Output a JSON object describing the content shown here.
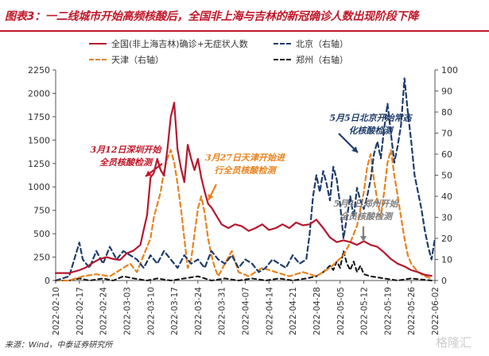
{
  "header": {
    "title": "图表3：一二线城市开始高频核酸后，全国非上海与吉林的新冠确诊人数出现阶段下降"
  },
  "footer": {
    "source": "来源：Wind，中泰证券研究所",
    "watermark": "格隆汇"
  },
  "colors": {
    "accent": "#c0182a",
    "national": "#b5182e",
    "tianjin": "#e8821e",
    "beijing": "#1f3d6b",
    "zhengzhou": "#111111",
    "guide": "#3a6ea5"
  },
  "chart_data": {
    "type": "line",
    "xlabel": "",
    "ylabel_left": "",
    "ylabel_right": "",
    "y_left_lim": [
      0,
      2250
    ],
    "y_left_ticks": [
      "0",
      "250",
      "500",
      "750",
      "1000",
      "1250",
      "1500",
      "1750",
      "2000",
      "2250"
    ],
    "y_right_lim": [
      0,
      100
    ],
    "y_right_ticks": [
      "0",
      "10",
      "20",
      "30",
      "40",
      "50",
      "60",
      "70",
      "80",
      "90",
      "100"
    ],
    "x_ticks": [
      "2022-02-10",
      "2022-02-17",
      "2022-02-24",
      "2022-03-03",
      "2022-03-10",
      "2022-03-17",
      "2022-03-24",
      "2022-03-31",
      "2022-04-07",
      "2022-04-14",
      "2022-04-21",
      "2022-04-28",
      "2022-05-05",
      "2022-05-12",
      "2022-05-19",
      "2022-05-26",
      "2022-06-02"
    ],
    "x_range": [
      "2022-02-10",
      "2022-06-02"
    ],
    "grid": false,
    "legend_position": "top",
    "series": [
      {
        "name": "全国(非上海吉林)确诊+无症状人数",
        "axis": "left",
        "style": "solid",
        "x": [
          "2022-02-10",
          "2022-02-14",
          "2022-02-17",
          "2022-02-19",
          "2022-02-21",
          "2022-02-23",
          "2022-02-25",
          "2022-02-27",
          "2022-03-01",
          "2022-03-03",
          "2022-03-05",
          "2022-03-07",
          "2022-03-08",
          "2022-03-09",
          "2022-03-10",
          "2022-03-11",
          "2022-03-12",
          "2022-03-13",
          "2022-03-14",
          "2022-03-15",
          "2022-03-16",
          "2022-03-17",
          "2022-03-18",
          "2022-03-19",
          "2022-03-20",
          "2022-03-21",
          "2022-03-22",
          "2022-03-23",
          "2022-03-24",
          "2022-03-25",
          "2022-03-26",
          "2022-03-27",
          "2022-03-28",
          "2022-03-29",
          "2022-03-31",
          "2022-04-02",
          "2022-04-04",
          "2022-04-06",
          "2022-04-08",
          "2022-04-10",
          "2022-04-12",
          "2022-04-14",
          "2022-04-16",
          "2022-04-18",
          "2022-04-20",
          "2022-04-22",
          "2022-04-24",
          "2022-04-26",
          "2022-04-28",
          "2022-04-30",
          "2022-05-02",
          "2022-05-04",
          "2022-05-06",
          "2022-05-08",
          "2022-05-10",
          "2022-05-12",
          "2022-05-14",
          "2022-05-16",
          "2022-05-18",
          "2022-05-20",
          "2022-05-22",
          "2022-05-24",
          "2022-05-26",
          "2022-05-28",
          "2022-05-30",
          "2022-06-01"
        ],
        "values": [
          80,
          80,
          110,
          140,
          190,
          230,
          250,
          230,
          220,
          290,
          320,
          380,
          540,
          700,
          1100,
          1150,
          1300,
          1180,
          1120,
          1400,
          1750,
          1900,
          1400,
          1200,
          1050,
          1450,
          1300,
          1180,
          1300,
          1100,
          950,
          820,
          780,
          720,
          600,
          560,
          600,
          580,
          530,
          560,
          600,
          540,
          560,
          600,
          560,
          620,
          590,
          600,
          650,
          560,
          460,
          410,
          430,
          410,
          380,
          420,
          380,
          360,
          300,
          230,
          180,
          150,
          110,
          90,
          60,
          50
        ]
      },
      {
        "name": "北京（右轴）",
        "axis": "right",
        "style": "dashed",
        "x": [
          "2022-02-10",
          "2022-02-14",
          "2022-02-17",
          "2022-02-18",
          "2022-02-20",
          "2022-02-22",
          "2022-02-24",
          "2022-02-26",
          "2022-02-28",
          "2022-03-02",
          "2022-03-04",
          "2022-03-06",
          "2022-03-08",
          "2022-03-10",
          "2022-03-12",
          "2022-03-14",
          "2022-03-16",
          "2022-03-18",
          "2022-03-20",
          "2022-03-22",
          "2022-03-24",
          "2022-03-26",
          "2022-03-28",
          "2022-03-30",
          "2022-04-01",
          "2022-04-03",
          "2022-04-05",
          "2022-04-07",
          "2022-04-09",
          "2022-04-11",
          "2022-04-13",
          "2022-04-15",
          "2022-04-17",
          "2022-04-19",
          "2022-04-21",
          "2022-04-23",
          "2022-04-25",
          "2022-04-26",
          "2022-04-27",
          "2022-04-28",
          "2022-04-29",
          "2022-04-30",
          "2022-05-01",
          "2022-05-02",
          "2022-05-03",
          "2022-05-04",
          "2022-05-05",
          "2022-05-06",
          "2022-05-07",
          "2022-05-08",
          "2022-05-09",
          "2022-05-10",
          "2022-05-11",
          "2022-05-12",
          "2022-05-13",
          "2022-05-14",
          "2022-05-15",
          "2022-05-16",
          "2022-05-17",
          "2022-05-18",
          "2022-05-19",
          "2022-05-20",
          "2022-05-21",
          "2022-05-22",
          "2022-05-23",
          "2022-05-24",
          "2022-05-25",
          "2022-05-26",
          "2022-05-27",
          "2022-05-28",
          "2022-05-29",
          "2022-05-30",
          "2022-05-31",
          "2022-06-01",
          "2022-06-02"
        ],
        "values": [
          0,
          2,
          18,
          10,
          6,
          14,
          8,
          16,
          10,
          14,
          12,
          10,
          6,
          12,
          8,
          14,
          10,
          6,
          12,
          8,
          10,
          6,
          14,
          10,
          8,
          12,
          6,
          10,
          8,
          4,
          6,
          10,
          8,
          6,
          12,
          8,
          10,
          22,
          40,
          50,
          42,
          52,
          46,
          38,
          54,
          48,
          36,
          20,
          30,
          40,
          30,
          44,
          38,
          34,
          40,
          48,
          60,
          66,
          58,
          72,
          84,
          70,
          56,
          64,
          74,
          96,
          80,
          66,
          50,
          42,
          34,
          24,
          16,
          10,
          20
        ]
      },
      {
        "name": "天津（右轴）",
        "axis": "right",
        "style": "dashed",
        "x": [
          "2022-02-10",
          "2022-02-14",
          "2022-02-18",
          "2022-02-22",
          "2022-02-26",
          "2022-03-01",
          "2022-03-04",
          "2022-03-06",
          "2022-03-08",
          "2022-03-10",
          "2022-03-11",
          "2022-03-12",
          "2022-03-13",
          "2022-03-14",
          "2022-03-15",
          "2022-03-16",
          "2022-03-17",
          "2022-03-18",
          "2022-03-19",
          "2022-03-20",
          "2022-03-21",
          "2022-03-22",
          "2022-03-23",
          "2022-03-24",
          "2022-03-25",
          "2022-03-26",
          "2022-03-27",
          "2022-03-28",
          "2022-03-29",
          "2022-03-30",
          "2022-04-01",
          "2022-04-03",
          "2022-04-05",
          "2022-04-08",
          "2022-04-12",
          "2022-04-16",
          "2022-04-20",
          "2022-04-24",
          "2022-04-28",
          "2022-05-02",
          "2022-05-06",
          "2022-05-08",
          "2022-05-10",
          "2022-05-12",
          "2022-05-13",
          "2022-05-14",
          "2022-05-15",
          "2022-05-16",
          "2022-05-17",
          "2022-05-18",
          "2022-05-19",
          "2022-05-20",
          "2022-05-21",
          "2022-05-22",
          "2022-05-23",
          "2022-05-24",
          "2022-05-25",
          "2022-05-26",
          "2022-05-28",
          "2022-05-30",
          "2022-06-01"
        ],
        "values": [
          0,
          0,
          2,
          3,
          2,
          5,
          8,
          4,
          12,
          20,
          30,
          36,
          42,
          52,
          58,
          62,
          56,
          46,
          34,
          20,
          6,
          10,
          22,
          34,
          40,
          32,
          20,
          12,
          6,
          2,
          8,
          14,
          4,
          2,
          6,
          4,
          2,
          4,
          2,
          6,
          12,
          18,
          26,
          42,
          54,
          60,
          48,
          38,
          30,
          42,
          56,
          62,
          50,
          40,
          30,
          20,
          12,
          8,
          4,
          2,
          1
        ]
      },
      {
        "name": "郑州（右轴）",
        "axis": "right",
        "style": "dashed",
        "x": [
          "2022-02-10",
          "2022-02-14",
          "2022-02-17",
          "2022-02-20",
          "2022-02-24",
          "2022-02-27",
          "2022-03-02",
          "2022-03-05",
          "2022-03-09",
          "2022-03-12",
          "2022-03-16",
          "2022-03-20",
          "2022-03-24",
          "2022-03-28",
          "2022-04-01",
          "2022-04-05",
          "2022-04-09",
          "2022-04-13",
          "2022-04-17",
          "2022-04-21",
          "2022-04-25",
          "2022-04-28",
          "2022-04-30",
          "2022-05-02",
          "2022-05-03",
          "2022-05-04",
          "2022-05-05",
          "2022-05-06",
          "2022-05-07",
          "2022-05-08",
          "2022-05-09",
          "2022-05-10",
          "2022-05-11",
          "2022-05-12",
          "2022-05-14",
          "2022-05-18",
          "2022-05-22",
          "2022-05-26",
          "2022-06-01"
        ],
        "values": [
          0,
          0,
          1,
          0,
          1,
          0,
          2,
          1,
          0,
          1,
          0,
          1,
          2,
          0,
          1,
          0,
          1,
          0,
          1,
          0,
          1,
          2,
          4,
          7,
          5,
          9,
          6,
          14,
          8,
          5,
          9,
          4,
          7,
          3,
          2,
          1,
          0,
          1,
          0
        ]
      }
    ],
    "annotations": [
      {
        "text_lines": [
          "3月12日深圳开始",
          "全员核酸检测"
        ],
        "color": "#c0182a"
      },
      {
        "text_lines": [
          "3月27日天津开始进",
          "行全员核酸检测"
        ],
        "color": "#e8821e"
      },
      {
        "text_lines": [
          "5月5日北京开始常态",
          "化核酸检测"
        ],
        "color": "#1f3d6b"
      },
      {
        "text_lines": [
          "5月4日郑州开始",
          "全员核酸检测"
        ],
        "color": "#7f7f7f"
      }
    ]
  }
}
